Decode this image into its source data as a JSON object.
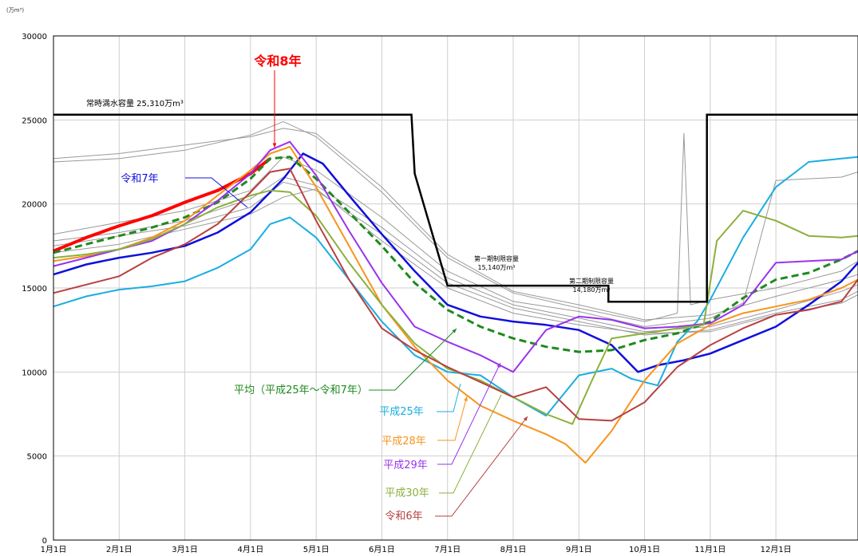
{
  "chart_data": {
    "type": "line",
    "y_unit": "(万m³)",
    "ylim": [
      0,
      30000
    ],
    "y_ticks": [
      0,
      5000,
      10000,
      15000,
      20000,
      25000,
      30000
    ],
    "x_ticks": [
      "1月1日",
      "2月1日",
      "3月1日",
      "4月1日",
      "5月1日",
      "6月1日",
      "7月1日",
      "8月1日",
      "9月1日",
      "10月1日",
      "11月1日",
      "12月1日"
    ],
    "xlim": [
      0,
      12.25
    ],
    "grid": true,
    "reference": {
      "full_capacity_label": "常時満水容量 25,310万m³",
      "limit1_label_line1": "第一期制限容量",
      "limit1_label_line2": "15,140万m³",
      "limit2_label_line1": "第二期制限容量",
      "limit2_label_line2": "14,180万m³",
      "x": [
        0,
        5.45,
        5.5,
        6.0,
        8.45,
        8.45,
        9.95,
        9.95,
        12.25
      ],
      "y": [
        25310,
        25310,
        21800,
        15140,
        15140,
        14180,
        14180,
        25310,
        25310
      ]
    },
    "series": [
      {
        "name": "令和8年",
        "color": "#ff0000",
        "width": 4,
        "dash": "",
        "x": [
          0,
          0.5,
          1,
          1.5,
          2,
          2.5,
          3,
          3.3
        ],
        "y": [
          17200,
          18000,
          18700,
          19300,
          20100,
          20800,
          21800,
          22700
        ]
      },
      {
        "name": "令和7年",
        "color": "#1010dd",
        "width": 2.5,
        "dash": "",
        "x": [
          0,
          0.5,
          1,
          1.5,
          2,
          2.5,
          3,
          3.5,
          3.8,
          4.1,
          4.5,
          5,
          5.5,
          6,
          6.5,
          7,
          7.5,
          8,
          8.5,
          8.9,
          9.2,
          9.6,
          10,
          10.5,
          11,
          11.5,
          12,
          12.25
        ],
        "y": [
          15800,
          16400,
          16800,
          17100,
          17500,
          18300,
          19500,
          21500,
          23000,
          22400,
          20500,
          18200,
          16000,
          14000,
          13300,
          13000,
          12800,
          12500,
          11600,
          10000,
          10400,
          10700,
          11100,
          11900,
          12700,
          14000,
          15400,
          16500
        ]
      },
      {
        "name": "平均（平成25年～令和7年）",
        "color": "#1f8a1f",
        "width": 3,
        "dash": "9,5",
        "x": [
          0,
          0.5,
          1,
          1.5,
          2,
          2.5,
          3,
          3.3,
          3.6,
          4,
          4.5,
          5,
          5.5,
          6,
          6.5,
          7,
          7.5,
          8,
          8.5,
          9,
          9.5,
          10,
          10.5,
          11,
          11.5,
          12,
          12.25
        ],
        "y": [
          17100,
          17600,
          18100,
          18600,
          19200,
          20100,
          21500,
          22700,
          22800,
          21500,
          19500,
          17500,
          15300,
          13700,
          12700,
          12000,
          11500,
          11200,
          11300,
          11900,
          12300,
          13000,
          14400,
          15500,
          15900,
          16700,
          17200
        ]
      },
      {
        "name": "平成25年",
        "color": "#1aaee0",
        "width": 2,
        "dash": "",
        "x": [
          0,
          0.5,
          1,
          1.5,
          2,
          2.5,
          3,
          3.3,
          3.6,
          4,
          4.5,
          5,
          5.5,
          6,
          6.5,
          7,
          7.5,
          8,
          8.5,
          8.8,
          9.2,
          9.5,
          9.8,
          10,
          10.5,
          11,
          11.5,
          12,
          12.25
        ],
        "y": [
          13900,
          14500,
          14900,
          15100,
          15400,
          16200,
          17300,
          18800,
          19200,
          18000,
          15500,
          13000,
          11000,
          10000,
          9800,
          8500,
          7400,
          9800,
          10200,
          9600,
          9200,
          11800,
          13000,
          14300,
          18000,
          21000,
          22500,
          22700,
          22800
        ]
      },
      {
        "name": "平成28年",
        "color": "#f7941d",
        "width": 2,
        "dash": "",
        "x": [
          0,
          0.5,
          1,
          1.5,
          2,
          2.5,
          3,
          3.3,
          3.6,
          4,
          4.5,
          5,
          5.5,
          6,
          6.5,
          7,
          7.5,
          7.8,
          8.1,
          8.5,
          9,
          9.5,
          10,
          10.5,
          11,
          11.5,
          12,
          12.25
        ],
        "y": [
          16600,
          16900,
          17300,
          18000,
          19000,
          20500,
          22000,
          23000,
          23400,
          21000,
          17500,
          14000,
          11500,
          9500,
          8000,
          7100,
          6300,
          5700,
          4600,
          6500,
          9500,
          11700,
          12800,
          13500,
          13900,
          14300,
          15000,
          15500
        ]
      },
      {
        "name": "平成29年",
        "color": "#9933ee",
        "width": 2,
        "dash": "",
        "x": [
          0,
          0.5,
          1,
          1.5,
          2,
          2.5,
          3,
          3.3,
          3.6,
          4,
          4.5,
          5,
          5.5,
          6,
          6.5,
          7,
          7.5,
          8,
          8.5,
          9,
          9.5,
          10,
          10.5,
          11,
          11.5,
          12,
          12.25
        ],
        "y": [
          16300,
          16800,
          17300,
          17800,
          18800,
          20200,
          21800,
          23200,
          23700,
          21700,
          18400,
          15300,
          12700,
          11800,
          11000,
          10000,
          12500,
          13300,
          13100,
          12600,
          12700,
          12900,
          14000,
          16500,
          16600,
          16700,
          17200
        ]
      },
      {
        "name": "平成30年",
        "color": "#8cb03c",
        "width": 2,
        "dash": "",
        "x": [
          0,
          0.5,
          1,
          1.5,
          2,
          2.5,
          3,
          3.3,
          3.6,
          4,
          4.5,
          5,
          5.5,
          6,
          6.5,
          7,
          7.5,
          7.9,
          8.2,
          8.5,
          9,
          9.5,
          9.9,
          10.1,
          10.5,
          11,
          11.5,
          12,
          12.25
        ],
        "y": [
          16800,
          17000,
          17300,
          17900,
          18800,
          19800,
          20500,
          20800,
          20700,
          19300,
          16500,
          14000,
          11700,
          10200,
          9500,
          8500,
          7500,
          6900,
          9500,
          12000,
          12300,
          12600,
          12800,
          17800,
          19600,
          19000,
          18100,
          18000,
          18100
        ]
      },
      {
        "name": "令和6年",
        "color": "#b84040",
        "width": 2,
        "dash": "",
        "x": [
          0,
          0.5,
          1,
          1.5,
          2,
          2.5,
          3,
          3.3,
          3.6,
          4,
          4.5,
          5,
          5.5,
          6,
          6.5,
          7,
          7.5,
          8,
          8.5,
          9,
          9.5,
          10,
          10.5,
          11,
          11.5,
          12,
          12.25
        ],
        "y": [
          14700,
          15200,
          15700,
          16800,
          17600,
          18800,
          20700,
          21900,
          22100,
          19000,
          15500,
          12600,
          11300,
          10300,
          9400,
          8500,
          9100,
          7200,
          7100,
          8200,
          10300,
          11600,
          12600,
          13400,
          13700,
          14200,
          15500
        ]
      },
      {
        "name": "",
        "color": "#999999",
        "width": 1,
        "dash": "",
        "x": [
          0,
          1,
          2,
          3,
          3.5,
          4,
          5,
          6,
          7,
          8,
          9,
          10,
          11,
          12,
          12.25
        ],
        "y": [
          22700,
          23000,
          23500,
          24000,
          24500,
          24200,
          21000,
          17000,
          14800,
          14000,
          13100,
          13400,
          14500,
          15500,
          15800
        ]
      },
      {
        "name": "",
        "color": "#999999",
        "width": 1,
        "dash": "",
        "x": [
          0,
          1,
          2,
          3,
          3.5,
          4,
          5,
          6,
          7,
          8,
          8.5,
          9,
          9.5,
          9.6,
          9.7,
          10,
          11,
          12,
          12.25
        ],
        "y": [
          22500,
          22700,
          23200,
          24100,
          24900,
          24000,
          20700,
          16800,
          14700,
          13800,
          13400,
          13000,
          13500,
          24200,
          14000,
          14300,
          15000,
          16000,
          16600
        ]
      },
      {
        "name": "",
        "color": "#999999",
        "width": 1,
        "dash": "",
        "x": [
          0,
          1,
          2,
          3,
          3.5,
          4,
          5,
          6,
          7,
          8,
          9,
          10,
          10.5,
          11,
          12,
          12.25
        ],
        "y": [
          18200,
          18900,
          19600,
          20800,
          22800,
          22000,
          19200,
          16000,
          14200,
          13600,
          12700,
          13200,
          14100,
          21400,
          21600,
          21900
        ]
      },
      {
        "name": "",
        "color": "#999999",
        "width": 1,
        "dash": "",
        "x": [
          0,
          1,
          2,
          3,
          3.5,
          4,
          5,
          6,
          7,
          8,
          9,
          10,
          11,
          12,
          12.25
        ],
        "y": [
          17800,
          18300,
          19000,
          20300,
          21600,
          21100,
          18600,
          15600,
          14000,
          13200,
          12400,
          12700,
          13700,
          14800,
          15200
        ]
      },
      {
        "name": "",
        "color": "#999999",
        "width": 1,
        "dash": "",
        "x": [
          0,
          1,
          2,
          3,
          3.5,
          4,
          5,
          6,
          7,
          8,
          9,
          10,
          11,
          12,
          12.25
        ],
        "y": [
          17500,
          18100,
          18700,
          19800,
          21300,
          20800,
          18200,
          15300,
          13800,
          13000,
          12200,
          12500,
          13500,
          14300,
          14800
        ]
      },
      {
        "name": "",
        "color": "#999999",
        "width": 1,
        "dash": "",
        "x": [
          0,
          1,
          2,
          3,
          3.5,
          4,
          5,
          6,
          7,
          8,
          9,
          10,
          11,
          12,
          12.25
        ],
        "y": [
          17100,
          17600,
          18500,
          19400,
          20400,
          20900,
          17800,
          15000,
          13500,
          12800,
          12300,
          12400,
          13400,
          14100,
          14600
        ]
      }
    ],
    "labels": [
      {
        "text": "令和8年",
        "color": "#ff0000",
        "big": true
      },
      {
        "text": "令和7年",
        "color": "#1010dd"
      },
      {
        "text": "平均（平成25年～令和7年）",
        "color": "#1f8a1f"
      },
      {
        "text": "平成25年",
        "color": "#1aaee0"
      },
      {
        "text": "平成28年",
        "color": "#f7941d"
      },
      {
        "text": "平成29年",
        "color": "#9933ee"
      },
      {
        "text": "平成30年",
        "color": "#8cb03c"
      },
      {
        "text": "令和6年",
        "color": "#b84040"
      }
    ]
  }
}
